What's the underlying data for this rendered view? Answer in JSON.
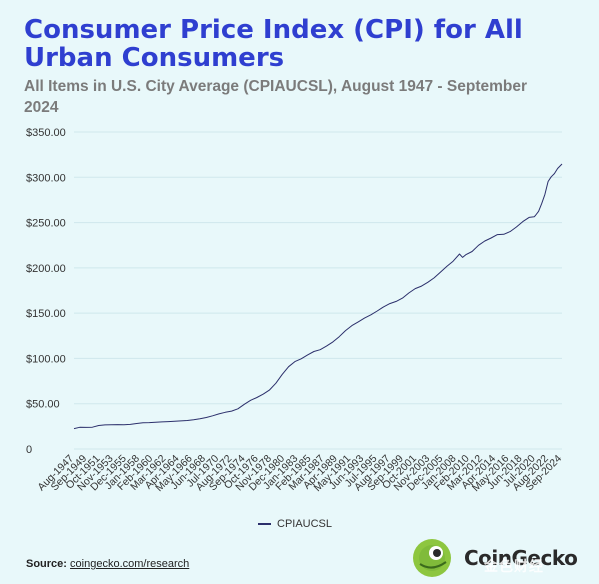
{
  "title": "Consumer Price Index (CPI) for All Urban Consumers",
  "subtitle": "All Items in U.S. City Average (CPIAUCSL), August 1947 - September 2024",
  "source": {
    "label": "Source:",
    "link": "coingecko.com/research"
  },
  "logo": {
    "text": "CoinGecko"
  },
  "watermark": "金色财经",
  "colors": {
    "title": "#2f3fd0",
    "line": "#2b2f6b",
    "background": "#e8f8fa",
    "grid": "#cfe7ec"
  },
  "chart_data": {
    "type": "line",
    "title": "Consumer Price Index (CPI) for All Urban Consumers",
    "xlabel": "",
    "ylabel": "",
    "ylim": [
      0,
      350
    ],
    "y_ticks": [
      "0",
      "$50.00",
      "$100.00",
      "$150.00",
      "$200.00",
      "$250.00",
      "$300.00",
      "$350.00"
    ],
    "x_ticks": [
      "Aug-1947",
      "Sep-1949",
      "Oct-1951",
      "Nov-1953",
      "Dec-1955",
      "Jan-1958",
      "Feb-1960",
      "Mar-1962",
      "Apr-1964",
      "May-1966",
      "Jun-1968",
      "Jul-1970",
      "Aug-1972",
      "Sep-1974",
      "Oct-1976",
      "Nov-1978",
      "Dec-1980",
      "Jan-1983",
      "Feb-1985",
      "Mar-1987",
      "Apr-1989",
      "May-1991",
      "Jun-1993",
      "Jul-1995",
      "Aug-1997",
      "Sep-1999",
      "Oct-2001",
      "Nov-2003",
      "Dec-2005",
      "Jan-2008",
      "Feb-2010",
      "Mar-2012",
      "Apr-2014",
      "May-2016",
      "Jun-2018",
      "Jul-2020",
      "Aug-2022",
      "Sep-2024"
    ],
    "legend": [
      "CPIAUCSL"
    ],
    "legend_position": "bottom",
    "grid": true,
    "series": [
      {
        "name": "CPIAUCSL",
        "x": [
          1947.6,
          1948.5,
          1949.5,
          1950.5,
          1951.5,
          1952.5,
          1953.5,
          1954.5,
          1955.5,
          1956.5,
          1957.5,
          1958.5,
          1959.5,
          1960.5,
          1961.5,
          1962.5,
          1963.5,
          1964.5,
          1965.5,
          1966.5,
          1967.5,
          1968.5,
          1969.5,
          1970.5,
          1971.5,
          1972.5,
          1973.5,
          1974.5,
          1975.5,
          1976.5,
          1977.5,
          1978.5,
          1979.5,
          1980.5,
          1981.5,
          1982.5,
          1983.5,
          1984.5,
          1985.5,
          1986.5,
          1987.5,
          1988.5,
          1989.5,
          1990.5,
          1991.5,
          1992.5,
          1993.5,
          1994.5,
          1995.5,
          1996.5,
          1997.5,
          1998.5,
          1999.5,
          2000.5,
          2001.5,
          2002.5,
          2003.5,
          2004.5,
          2005.5,
          2006.5,
          2007.5,
          2008.5,
          2009.0,
          2009.5,
          2010.5,
          2011.5,
          2012.5,
          2013.5,
          2014.5,
          2015.5,
          2016.5,
          2017.5,
          2018.5,
          2019.5,
          2020.3,
          2020.5,
          2021.0,
          2021.5,
          2022.0,
          2022.5,
          2023.0,
          2023.5,
          2024.0,
          2024.7
        ],
        "values": [
          22.5,
          24.0,
          23.8,
          24.1,
          26.0,
          26.6,
          26.8,
          26.9,
          26.8,
          27.2,
          28.1,
          28.9,
          29.2,
          29.6,
          29.9,
          30.2,
          30.6,
          31.0,
          31.5,
          32.4,
          33.4,
          34.8,
          36.7,
          38.8,
          40.5,
          41.8,
          44.4,
          49.3,
          53.8,
          56.9,
          60.6,
          65.2,
          72.6,
          82.4,
          90.9,
          96.5,
          99.6,
          103.9,
          107.6,
          109.6,
          113.6,
          118.3,
          124.0,
          130.7,
          136.2,
          140.3,
          144.5,
          148.2,
          152.4,
          156.9,
          160.5,
          163.0,
          166.6,
          172.2,
          177.1,
          179.9,
          184.0,
          188.9,
          195.3,
          201.6,
          207.3,
          215.3,
          211.5,
          214.5,
          218.1,
          224.9,
          229.6,
          233.0,
          236.7,
          237.0,
          240.0,
          245.1,
          251.1,
          255.7,
          256.4,
          257.8,
          262.5,
          271.0,
          281.1,
          295.3,
          300.5,
          304.1,
          309.7,
          314.7
        ]
      }
    ]
  }
}
